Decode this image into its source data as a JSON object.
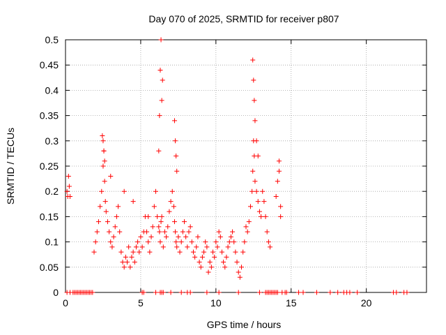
{
  "chart_data": {
    "type": "scatter",
    "title": "Day 070 of 2025, SRMTID for receiver p807",
    "xlabel": "GPS time / hours",
    "ylabel": "SRMTID / TECUs",
    "xlim": [
      0,
      24
    ],
    "ylim": [
      0,
      0.5
    ],
    "xticks": [
      0,
      5,
      10,
      15,
      20
    ],
    "xtick_labels": [
      "0",
      "5",
      "10",
      "15",
      "20"
    ],
    "yticks": [
      0,
      0.05,
      0.1,
      0.15,
      0.2,
      0.25,
      0.3,
      0.35,
      0.4,
      0.45,
      0.5
    ],
    "ytick_labels": [
      "0",
      "0.05",
      "0.1",
      "0.15",
      "0.2",
      "0.25",
      "0.3",
      "0.35",
      "0.4",
      "0.45",
      "0.5"
    ],
    "grid": true,
    "series": [
      {
        "name": "SRMTID",
        "marker": "+",
        "color": "#ff0000",
        "x": [
          0.1,
          0.15,
          0.2,
          0.25,
          0.3,
          1.9,
          2.0,
          2.1,
          2.2,
          2.3,
          2.4,
          2.5,
          2.55,
          2.6,
          2.65,
          2.7,
          2.8,
          2.9,
          3.0,
          3.1,
          3.2,
          3.3,
          3.4,
          3.5,
          3.6,
          3.7,
          3.8,
          3.9,
          4.0,
          4.1,
          4.2,
          4.3,
          4.4,
          4.5,
          4.6,
          4.7,
          4.8,
          4.9,
          5.0,
          5.1,
          5.2,
          5.3,
          5.4,
          5.5,
          5.6,
          5.7,
          5.8,
          5.9,
          6.0,
          6.1,
          6.2,
          6.25,
          6.3,
          6.35,
          6.4,
          6.5,
          6.6,
          6.7,
          6.8,
          6.9,
          7.0,
          7.1,
          7.2,
          7.25,
          7.3,
          7.35,
          7.4,
          7.5,
          7.6,
          7.7,
          7.8,
          7.9,
          8.0,
          8.1,
          8.2,
          8.3,
          8.4,
          8.5,
          8.6,
          8.7,
          8.8,
          8.9,
          9.0,
          9.1,
          9.2,
          9.3,
          9.4,
          9.5,
          9.6,
          9.7,
          9.8,
          9.9,
          10.0,
          10.1,
          10.2,
          10.3,
          10.4,
          10.5,
          10.6,
          10.7,
          10.8,
          10.9,
          11.0,
          11.1,
          11.2,
          11.3,
          11.4,
          11.5,
          11.6,
          11.7,
          11.8,
          11.9,
          12.0,
          12.1,
          12.2,
          12.3,
          12.4,
          12.45,
          12.5,
          12.55,
          12.6,
          12.7,
          12.8,
          12.9,
          13.0,
          13.1,
          13.2,
          13.3,
          13.4,
          13.5,
          13.6,
          14.0,
          14.1,
          14.2,
          14.3,
          2.45,
          2.5,
          2.55,
          2.6,
          3.0,
          3.9,
          4.5,
          5.5,
          6.2,
          6.25,
          6.3,
          6.35,
          6.4,
          6.45,
          7.25,
          7.3,
          7.35,
          7.4,
          12.45,
          12.5,
          12.55,
          12.6,
          12.7,
          12.8,
          14.2,
          14.3
        ],
        "y": [
          0.2,
          0.19,
          0.23,
          0.21,
          0.19,
          0.08,
          0.1,
          0.12,
          0.14,
          0.17,
          0.2,
          0.25,
          0.28,
          0.22,
          0.18,
          0.16,
          0.14,
          0.12,
          0.1,
          0.09,
          0.11,
          0.13,
          0.15,
          0.17,
          0.12,
          0.08,
          0.06,
          0.05,
          0.07,
          0.06,
          0.09,
          0.05,
          0.07,
          0.08,
          0.06,
          0.09,
          0.1,
          0.08,
          0.11,
          0.09,
          0.12,
          0.15,
          0.12,
          0.1,
          0.08,
          0.11,
          0.13,
          0.17,
          0.2,
          0.15,
          0.13,
          0.12,
          0.1,
          0.14,
          0.15,
          0.09,
          0.12,
          0.11,
          0.13,
          0.16,
          0.18,
          0.2,
          0.17,
          0.14,
          0.12,
          0.1,
          0.09,
          0.11,
          0.08,
          0.1,
          0.12,
          0.14,
          0.11,
          0.09,
          0.12,
          0.13,
          0.1,
          0.08,
          0.07,
          0.09,
          0.11,
          0.06,
          0.05,
          0.07,
          0.08,
          0.1,
          0.09,
          0.04,
          0.06,
          0.05,
          0.08,
          0.07,
          0.1,
          0.09,
          0.12,
          0.11,
          0.08,
          0.06,
          0.05,
          0.07,
          0.09,
          0.1,
          0.11,
          0.12,
          0.1,
          0.08,
          0.06,
          0.04,
          0.03,
          0.05,
          0.08,
          0.1,
          0.13,
          0.12,
          0.14,
          0.17,
          0.2,
          0.24,
          0.3,
          0.27,
          0.22,
          0.2,
          0.18,
          0.16,
          0.15,
          0.2,
          0.18,
          0.15,
          0.12,
          0.1,
          0.09,
          0.19,
          0.22,
          0.24,
          0.17,
          0.31,
          0.3,
          0.28,
          0.26,
          0.23,
          0.2,
          0.18,
          0.15,
          0.28,
          0.35,
          0.44,
          0.5,
          0.38,
          0.42,
          0.34,
          0.3,
          0.27,
          0.24,
          0.46,
          0.42,
          0.38,
          0.34,
          0.3,
          0.27,
          0.26,
          0.15
        ],
        "x_zero": [
          0.1,
          0.3,
          0.5,
          0.6,
          0.7,
          0.8,
          0.9,
          1.0,
          1.1,
          1.2,
          1.3,
          1.4,
          1.5,
          1.6,
          1.7,
          1.8,
          5.1,
          5.2,
          6.0,
          6.3,
          6.4,
          6.5,
          7.0,
          7.7,
          8.1,
          8.3,
          9.4,
          10.2,
          11.5,
          12.9,
          13.3,
          13.4,
          13.5,
          13.6,
          13.7,
          13.8,
          13.9,
          14.0,
          14.1,
          14.4,
          14.6,
          14.7,
          15.5,
          15.8,
          16.7,
          17.6,
          18.1,
          18.5,
          18.7,
          18.9,
          19.4,
          21.8,
          22.0,
          22.5,
          22.7
        ]
      }
    ]
  }
}
